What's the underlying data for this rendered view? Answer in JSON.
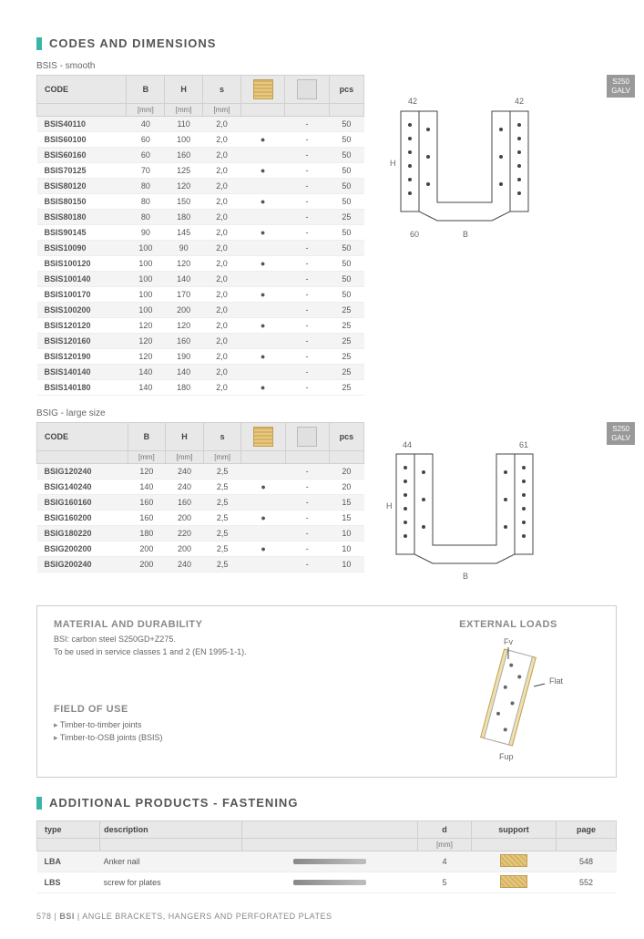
{
  "sections": {
    "codes_title": "CODES AND DIMENSIONS",
    "additional_title": "ADDITIONAL PRODUCTS - FASTENING"
  },
  "badge": {
    "line1": "S250",
    "line2": "GALV"
  },
  "tables": {
    "bsis": {
      "subtitle": "BSIS - smooth",
      "headers": {
        "code": "CODE",
        "b": "B",
        "h": "H",
        "s": "s",
        "pcs": "pcs",
        "unit": "[mm]"
      },
      "rows": [
        {
          "code": "BSIS40110",
          "b": "40",
          "h": "110",
          "s": "2,0",
          "wood": "",
          "conc": "-",
          "pcs": "50"
        },
        {
          "code": "BSIS60100",
          "b": "60",
          "h": "100",
          "s": "2,0",
          "wood": "●",
          "conc": "-",
          "pcs": "50"
        },
        {
          "code": "BSIS60160",
          "b": "60",
          "h": "160",
          "s": "2,0",
          "wood": "",
          "conc": "-",
          "pcs": "50"
        },
        {
          "code": "BSIS70125",
          "b": "70",
          "h": "125",
          "s": "2,0",
          "wood": "●",
          "conc": "-",
          "pcs": "50"
        },
        {
          "code": "BSIS80120",
          "b": "80",
          "h": "120",
          "s": "2,0",
          "wood": "",
          "conc": "-",
          "pcs": "50"
        },
        {
          "code": "BSIS80150",
          "b": "80",
          "h": "150",
          "s": "2,0",
          "wood": "●",
          "conc": "-",
          "pcs": "50"
        },
        {
          "code": "BSIS80180",
          "b": "80",
          "h": "180",
          "s": "2,0",
          "wood": "",
          "conc": "-",
          "pcs": "25"
        },
        {
          "code": "BSIS90145",
          "b": "90",
          "h": "145",
          "s": "2,0",
          "wood": "●",
          "conc": "-",
          "pcs": "50"
        },
        {
          "code": "BSIS10090",
          "b": "100",
          "h": "90",
          "s": "2,0",
          "wood": "",
          "conc": "-",
          "pcs": "50"
        },
        {
          "code": "BSIS100120",
          "b": "100",
          "h": "120",
          "s": "2,0",
          "wood": "●",
          "conc": "-",
          "pcs": "50"
        },
        {
          "code": "BSIS100140",
          "b": "100",
          "h": "140",
          "s": "2,0",
          "wood": "",
          "conc": "-",
          "pcs": "50"
        },
        {
          "code": "BSIS100170",
          "b": "100",
          "h": "170",
          "s": "2,0",
          "wood": "●",
          "conc": "-",
          "pcs": "50"
        },
        {
          "code": "BSIS100200",
          "b": "100",
          "h": "200",
          "s": "2,0",
          "wood": "",
          "conc": "-",
          "pcs": "25"
        },
        {
          "code": "BSIS120120",
          "b": "120",
          "h": "120",
          "s": "2,0",
          "wood": "●",
          "conc": "-",
          "pcs": "25"
        },
        {
          "code": "BSIS120160",
          "b": "120",
          "h": "160",
          "s": "2,0",
          "wood": "",
          "conc": "-",
          "pcs": "25"
        },
        {
          "code": "BSIS120190",
          "b": "120",
          "h": "190",
          "s": "2,0",
          "wood": "●",
          "conc": "-",
          "pcs": "25"
        },
        {
          "code": "BSIS140140",
          "b": "140",
          "h": "140",
          "s": "2,0",
          "wood": "",
          "conc": "-",
          "pcs": "25"
        },
        {
          "code": "BSIS140180",
          "b": "140",
          "h": "180",
          "s": "2,0",
          "wood": "●",
          "conc": "-",
          "pcs": "25"
        }
      ],
      "diagram": {
        "top_left": "42",
        "top_right": "42",
        "side": "H",
        "bottom_left": "60",
        "bottom": "B"
      }
    },
    "bsig": {
      "subtitle": "BSIG - large size",
      "rows": [
        {
          "code": "BSIG120240",
          "b": "120",
          "h": "240",
          "s": "2,5",
          "wood": "",
          "conc": "-",
          "pcs": "20"
        },
        {
          "code": "BSIG140240",
          "b": "140",
          "h": "240",
          "s": "2,5",
          "wood": "●",
          "conc": "-",
          "pcs": "20"
        },
        {
          "code": "BSIG160160",
          "b": "160",
          "h": "160",
          "s": "2,5",
          "wood": "",
          "conc": "-",
          "pcs": "15"
        },
        {
          "code": "BSIG160200",
          "b": "160",
          "h": "200",
          "s": "2,5",
          "wood": "●",
          "conc": "-",
          "pcs": "15"
        },
        {
          "code": "BSIG180220",
          "b": "180",
          "h": "220",
          "s": "2,5",
          "wood": "",
          "conc": "-",
          "pcs": "10"
        },
        {
          "code": "BSIG200200",
          "b": "200",
          "h": "200",
          "s": "2,5",
          "wood": "●",
          "conc": "-",
          "pcs": "10"
        },
        {
          "code": "BSIG200240",
          "b": "200",
          "h": "240",
          "s": "2,5",
          "wood": "",
          "conc": "-",
          "pcs": "10"
        }
      ],
      "diagram": {
        "top_left": "44",
        "top_right": "61",
        "side": "H",
        "bottom": "B"
      }
    },
    "fastening": {
      "headers": {
        "type": "type",
        "desc": "description",
        "d": "d",
        "unit": "[mm]",
        "support": "support",
        "page": "page"
      },
      "rows": [
        {
          "type": "LBA",
          "desc": "Anker nail",
          "d": "4",
          "page": "548"
        },
        {
          "type": "LBS",
          "desc": "screw for plates",
          "d": "5",
          "page": "552"
        }
      ]
    }
  },
  "info": {
    "material_h": "MATERIAL AND DURABILITY",
    "material_p1": "BSI: carbon steel S250GD+Z275.",
    "material_p2": "To be used in service classes 1 and 2 (EN 1995-1-1).",
    "field_h": "FIELD OF USE",
    "field_items": [
      "Timber-to-timber joints",
      "Timber-to-OSB joints (BSIS)"
    ],
    "loads_h": "EXTERNAL LOADS",
    "loads_labels": {
      "fv": "Fv",
      "flat": "Flat",
      "fup": "Fup"
    }
  },
  "footer": {
    "page": "578",
    "sep": " | ",
    "code": "BSI",
    "text": "ANGLE BRACKETS, HANGERS AND PERFORATED PLATES"
  },
  "colors": {
    "accent": "#3bb3a9",
    "header_bg": "#e8e8e8",
    "alt_row": "#f4f4f4",
    "badge": "#999999",
    "text": "#555555"
  }
}
